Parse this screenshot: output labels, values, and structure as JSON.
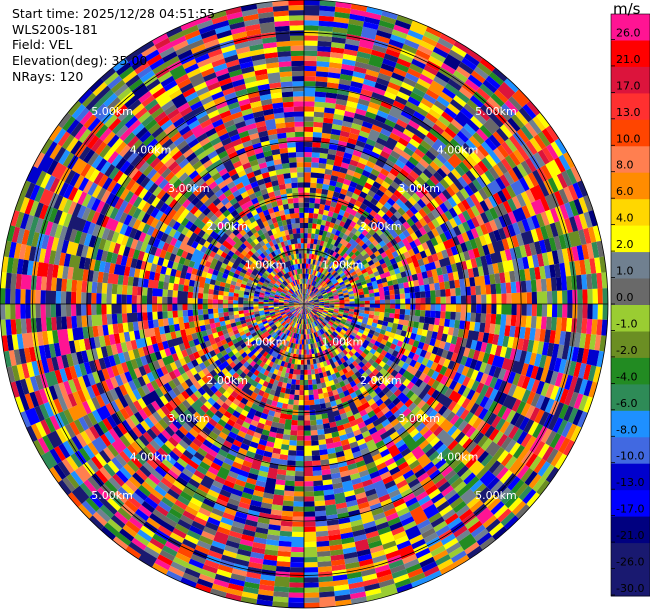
{
  "info": {
    "start_time": "Start time: 2025/12/28 04:51:55",
    "site": "WLS200s-181",
    "field": "Field: VEL",
    "elevation": "Elevation(deg): 35.00",
    "nrays": "NRays: 120"
  },
  "colorbar": {
    "unit": "m/s",
    "bins": [
      {
        "label": "26.0",
        "color": "#ff1493"
      },
      {
        "label": "21.0",
        "color": "#ff0000"
      },
      {
        "label": "17.0",
        "color": "#dc143c"
      },
      {
        "label": "13.0",
        "color": "#ff3030"
      },
      {
        "label": "10.0",
        "color": "#ff4500"
      },
      {
        "label": "8.0",
        "color": "#ff7f50"
      },
      {
        "label": "6.0",
        "color": "#ff8c00"
      },
      {
        "label": "4.0",
        "color": "#ffd700"
      },
      {
        "label": "2.0",
        "color": "#ffff00"
      },
      {
        "label": "1.0",
        "color": "#708090"
      },
      {
        "label": "0.0",
        "color": "#696969"
      },
      {
        "label": "-1.0",
        "color": "#9acd32"
      },
      {
        "label": "-2.0",
        "color": "#6b8e23"
      },
      {
        "label": "-4.0",
        "color": "#228b22"
      },
      {
        "label": "-6.0",
        "color": "#2e8b57"
      },
      {
        "label": "-8.0",
        "color": "#1e90ff"
      },
      {
        "label": "-10.0",
        "color": "#4169e1"
      },
      {
        "label": "-13.0",
        "color": "#0000cd"
      },
      {
        "label": "-17.0",
        "color": "#0000ff"
      },
      {
        "label": "-21.0",
        "color": "#000080"
      },
      {
        "label": "-26.0",
        "color": "#191970"
      },
      {
        "label": "-30.0",
        "color": "#191970"
      }
    ]
  },
  "chart_data": {
    "type": "heatmap",
    "projection": "polar-ppi",
    "field": "VEL",
    "unit": "m/s",
    "nrays": 120,
    "range_rings_km": [
      1.0,
      2.0,
      3.0,
      4.0,
      5.0
    ],
    "ring_labels": [
      "1.00km",
      "2.00km",
      "3.00km",
      "4.00km",
      "5.00km"
    ],
    "max_range_km": 5.6,
    "color_levels": [
      -30.0,
      -26.0,
      -21.0,
      -17.0,
      -13.0,
      -10.0,
      -8.0,
      -6.0,
      -4.0,
      -2.0,
      -1.0,
      0.0,
      1.0,
      2.0,
      4.0,
      6.0,
      8.0,
      10.0,
      13.0,
      17.0,
      21.0,
      26.0
    ],
    "velocity_field": "noisy, values spread across entire color scale (approximately uniform random per gate)"
  }
}
